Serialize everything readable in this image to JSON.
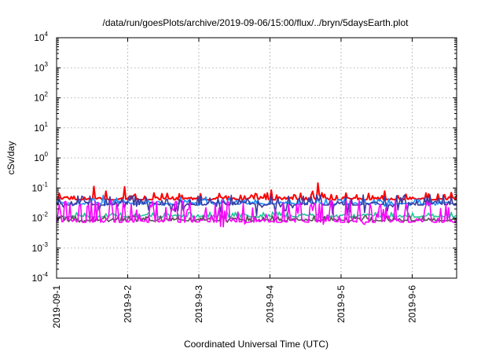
{
  "chart_data": {
    "type": "line",
    "title": "/data/run/goesPlots/archive/2019-09-06/15:00/flux/../bryn/5daysEarth.plot",
    "xlabel": "Coordinated Universal Time (UTC)",
    "ylabel": "cSv/day",
    "yscale": "log",
    "ylim": [
      0.0001,
      10000
    ],
    "xlim": [
      "2019-09-01",
      "2019-09-06 15:00"
    ],
    "x_ticks": [
      "2019-09-1",
      "2019-9-2",
      "2019-9-3",
      "2019-9-4",
      "2019-9-5",
      "2019-9-6"
    ],
    "y_ticks": [
      {
        "base": "10",
        "exp": "-4"
      },
      {
        "base": "10",
        "exp": "-3"
      },
      {
        "base": "10",
        "exp": "-2"
      },
      {
        "base": "10",
        "exp": "-1"
      },
      {
        "base": "10",
        "exp": "0"
      },
      {
        "base": "10",
        "exp": "1"
      },
      {
        "base": "10",
        "exp": "2"
      },
      {
        "base": "10",
        "exp": "3"
      },
      {
        "base": "10",
        "exp": "4"
      }
    ],
    "grid": true,
    "series": [
      {
        "color": "#ff0000",
        "baseline": 0.045,
        "spike_max": 0.15,
        "typical_range": [
          0.04,
          0.07
        ]
      },
      {
        "color": "#1e90ff",
        "baseline": 0.032,
        "spike_max": 0.06,
        "typical_range": [
          0.025,
          0.045
        ]
      },
      {
        "color": "#3a3aa0",
        "baseline": 0.03,
        "typical_range": [
          0.012,
          0.06
        ]
      },
      {
        "color": "#20c997",
        "baseline": 0.012,
        "typical_range": [
          0.01,
          0.016
        ]
      },
      {
        "color": "#555555",
        "baseline": 0.009,
        "typical_range": [
          0.007,
          0.012
        ]
      },
      {
        "color": "#ff00ff",
        "baseline": 0.008,
        "typical_range": [
          0.005,
          0.04
        ]
      }
    ]
  }
}
